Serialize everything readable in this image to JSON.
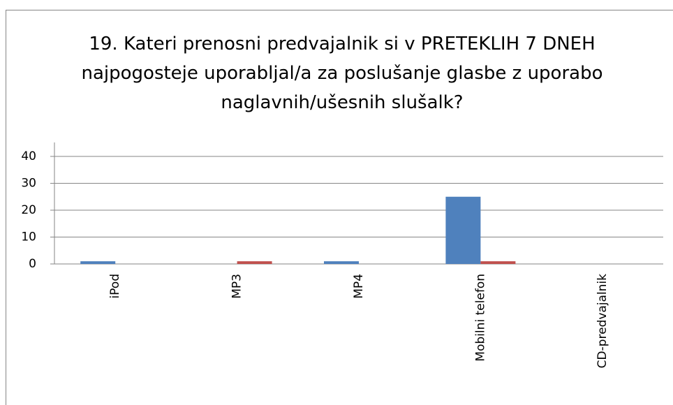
{
  "chart_data": {
    "type": "bar",
    "title": "19. Kateri prenosni predvajalnik si v PRETEKLIH 7 DNEH najpogosteje uporabljal/a za poslušanje glasbe z uporabo naglavnih/ušesnih slušalk?",
    "categories": [
      "iPod",
      "MP3",
      "MP4",
      "Mobilni telefon",
      "CD-predvajalnik"
    ],
    "series": [
      {
        "color": "#4f81bd",
        "values": [
          1,
          0,
          1,
          25,
          0
        ]
      },
      {
        "color": "#c0504d",
        "values": [
          0,
          1,
          0,
          1,
          0
        ]
      }
    ],
    "ylim": [
      0,
      40
    ],
    "yticks": [
      0,
      10,
      20,
      30,
      40
    ],
    "grid": true
  }
}
